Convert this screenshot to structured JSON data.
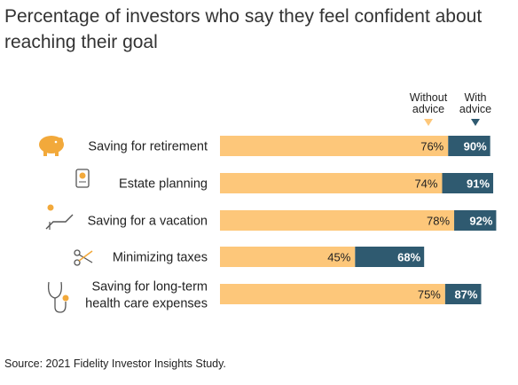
{
  "title": "Percentage of investors who say they feel confident about reaching their goal",
  "legend": {
    "without": {
      "line1": "Without",
      "line2": "advice",
      "color": "#fdc77a"
    },
    "with": {
      "line1": "With",
      "line2": "advice",
      "color": "#2f5a70"
    }
  },
  "chart_data": {
    "type": "bar",
    "orientation": "horizontal",
    "stacked_overlay": true,
    "categories": [
      "Saving for retirement",
      "Estate planning",
      "Saving for a vacation",
      "Minimizing taxes",
      "Saving for long-term health care expenses"
    ],
    "series": [
      {
        "name": "Without advice",
        "values": [
          76,
          74,
          78,
          45,
          75
        ],
        "color": "#fdc77a"
      },
      {
        "name": "With advice",
        "values": [
          90,
          91,
          92,
          68,
          87
        ],
        "color": "#2f5a70"
      }
    ],
    "category_icons": [
      "piggy-bank-icon",
      "scroll-certificate-icon",
      "sun-lounger-icon",
      "scissors-icon",
      "stethoscope-icon"
    ],
    "xlim": [
      0,
      100
    ],
    "grid": false,
    "legend_position": "top-right"
  },
  "source": "Source: 2021 Fidelity Investor Insights Study."
}
